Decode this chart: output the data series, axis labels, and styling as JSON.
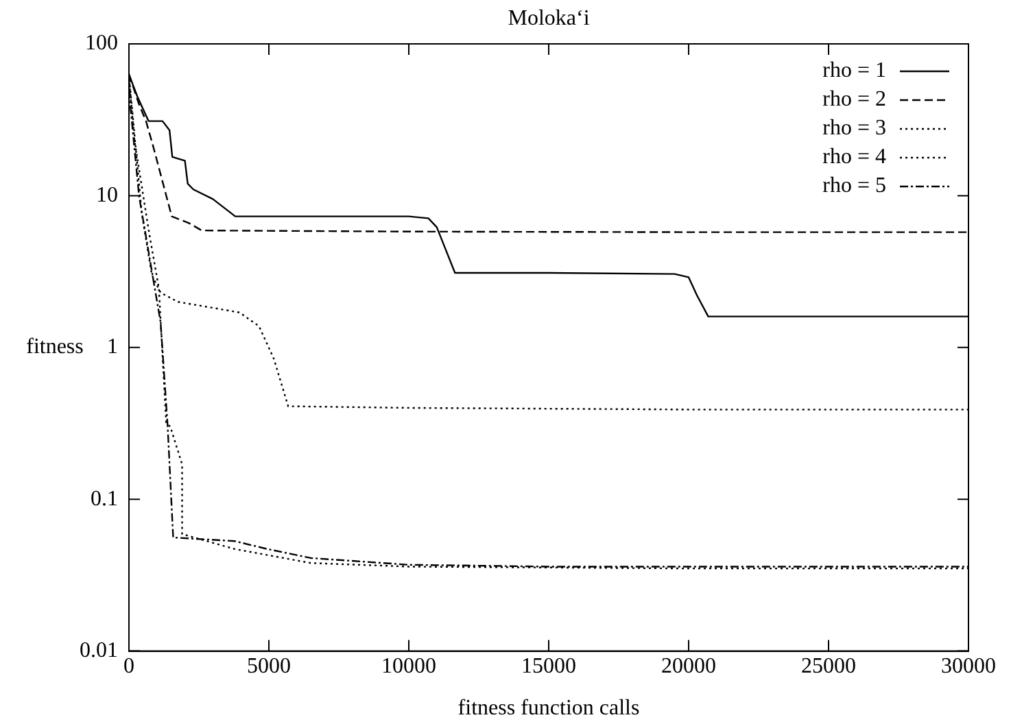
{
  "chart_data": {
    "type": "line",
    "title": "Moloka‘i",
    "xlabel": "fitness function calls",
    "ylabel": "fitness",
    "log": "y",
    "xlim": [
      0,
      30000
    ],
    "ylim": [
      0.01,
      100
    ],
    "xticks": [
      0,
      5000,
      10000,
      15000,
      20000,
      25000,
      30000
    ],
    "yticks": [
      0.01,
      0.1,
      1,
      10,
      100
    ],
    "grid": false,
    "legend": "top right",
    "marker": "none",
    "series": [
      {
        "name": "rho = 1",
        "color": "#000000",
        "line_style": "solid",
        "x": [
          0,
          300,
          700,
          1200,
          1450,
          1550,
          2000,
          2100,
          2300,
          3000,
          3800,
          6000,
          10000,
          10700,
          11000,
          11300,
          11650,
          15000,
          19500,
          20000,
          20300,
          20700,
          25000,
          30000
        ],
        "values": [
          63,
          45,
          31,
          31,
          27,
          18,
          17,
          12,
          11,
          9.5,
          7.3,
          7.3,
          7.3,
          7.1,
          6.2,
          4.5,
          3.1,
          3.1,
          3.05,
          2.9,
          2.2,
          1.6,
          1.6,
          1.6
        ]
      },
      {
        "name": "rho = 2",
        "color": "#000000",
        "line_style": "dashed",
        "x": [
          0,
          360,
          610,
          870,
          1220,
          1530,
          2140,
          2600,
          10000,
          20000,
          30000
        ],
        "values": [
          63,
          40,
          31,
          21,
          12,
          7.3,
          6.6,
          5.9,
          5.8,
          5.75,
          5.75
        ]
      },
      {
        "name": "rho = 3",
        "color": "#000000",
        "line_style": "dotted",
        "x": [
          0,
          200,
          460,
          820,
          1130,
          1740,
          3950,
          4650,
          5180,
          5690,
          10000,
          20000,
          30000
        ],
        "values": [
          63,
          25,
          7.6,
          3,
          2.3,
          2,
          1.7,
          1.38,
          0.84,
          0.41,
          0.4,
          0.39,
          0.39
        ]
      },
      {
        "name": "rho = 4",
        "color": "#000000",
        "line_style": "dotted",
        "x": [
          0,
          200,
          720,
          1070,
          1330,
          1480,
          1900,
          1900,
          3780,
          6500,
          10000,
          20000,
          30000
        ],
        "values": [
          60,
          23,
          5.7,
          2.45,
          0.32,
          0.3,
          0.17,
          0.059,
          0.047,
          0.038,
          0.036,
          0.035,
          0.035
        ]
      },
      {
        "name": "rho = 5",
        "color": "#000000",
        "line_style": "dashdot",
        "x": [
          0,
          50,
          360,
          870,
          1130,
          1380,
          1580,
          3780,
          4950,
          6500,
          10000,
          15000,
          30000
        ],
        "values": [
          63,
          39,
          10,
          2.8,
          1.47,
          0.31,
          0.056,
          0.053,
          0.047,
          0.041,
          0.037,
          0.036,
          0.036
        ]
      }
    ]
  }
}
